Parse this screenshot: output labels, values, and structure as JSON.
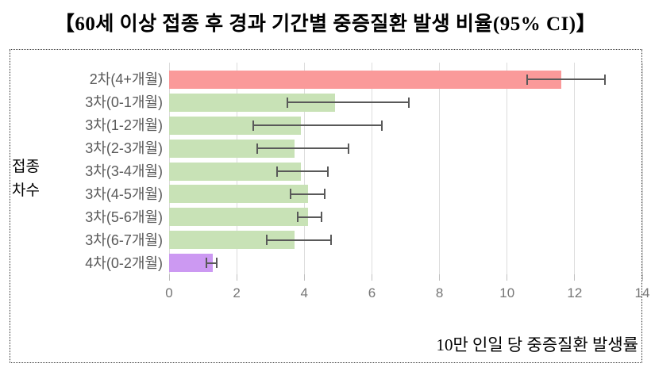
{
  "title": "【60세 이상 접종 후 경과 기간별 중증질환 발생 비율(95% CI)】",
  "y_axis_title_lines": [
    "접종",
    "차수"
  ],
  "x_axis_caption": "10만 인일 당 중증질환 발생률",
  "colors": {
    "bar_2nd_dose": "#FA9A9A",
    "bar_3rd_dose": "#C8E2B6",
    "bar_4th_dose": "#CC99F2",
    "error_bar": "#595959",
    "gridline": "#DCDCDC",
    "category_label": "#595959",
    "tick_label": "#767676"
  },
  "chart_data": {
    "type": "bar",
    "orientation": "horizontal",
    "title": "【60세 이상 접종 후 경과 기간별 중증질환 발생 비율(95% CI)】",
    "xlabel": "10만 인일 당 중증질환 발생률",
    "ylabel": "접종 차수",
    "legend": "none",
    "grid": true,
    "xlim": [
      0,
      14
    ],
    "x_ticks": [
      0,
      2,
      4,
      6,
      8,
      10,
      12,
      14
    ],
    "categories": [
      "2차(4+개월)",
      "3차(0-1개월)",
      "3차(1-2개월)",
      "3차(2-3개월)",
      "3차(3-4개월)",
      "3차(4-5개월)",
      "3차(5-6개월)",
      "3차(6-7개월)",
      "4차(0-2개월)"
    ],
    "values": [
      11.6,
      4.9,
      3.9,
      3.7,
      3.9,
      4.1,
      4.1,
      3.7,
      1.3
    ],
    "ci_low": [
      10.6,
      3.5,
      2.5,
      2.6,
      3.2,
      3.6,
      3.8,
      2.9,
      1.1
    ],
    "ci_high": [
      12.9,
      7.1,
      6.3,
      5.3,
      4.7,
      4.6,
      4.5,
      4.8,
      1.4
    ],
    "bar_colors": [
      "#FA9A9A",
      "#C8E2B6",
      "#C8E2B6",
      "#C8E2B6",
      "#C8E2B6",
      "#C8E2B6",
      "#C8E2B6",
      "#C8E2B6",
      "#CC99F2"
    ]
  }
}
